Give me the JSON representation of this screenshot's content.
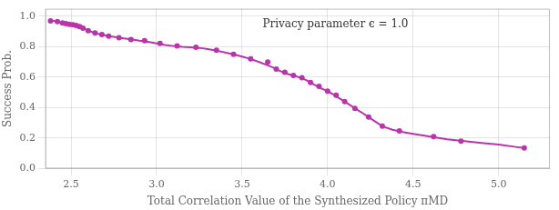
{
  "chart_data": {
    "type": "line",
    "xlabel": "Total Correlation Value of the Synthesized Policy πMD",
    "ylabel": "Success Prob.",
    "series": [
      {
        "type": "line",
        "color": "#bb33aa",
        "x": [
          2.38,
          2.39,
          2.4,
          2.41,
          2.42,
          2.43,
          2.44,
          2.445,
          2.45,
          2.455,
          2.46,
          2.465,
          2.47,
          2.475,
          2.48,
          2.485,
          2.49,
          2.495,
          2.5,
          2.505,
          2.51,
          2.515,
          2.52,
          2.525,
          2.53,
          2.535,
          2.54,
          2.545,
          2.55,
          2.56,
          2.57,
          2.58,
          2.59,
          2.6,
          2.62,
          2.64,
          2.66,
          2.68,
          2.7,
          2.72,
          2.75,
          2.78,
          2.82,
          2.86,
          2.9,
          2.95,
          3.0,
          3.05,
          3.1,
          3.15,
          3.2,
          3.25,
          3.3,
          3.35,
          3.4,
          3.45,
          3.5,
          3.55,
          3.6,
          3.65,
          3.68,
          3.7,
          3.72,
          3.74,
          3.76,
          3.78,
          3.8,
          3.82,
          3.84,
          3.86,
          3.88,
          3.9,
          3.92,
          3.94,
          3.96,
          3.98,
          4.0,
          4.02,
          4.04,
          4.06,
          4.08,
          4.1,
          4.13,
          4.16,
          4.2,
          4.24,
          4.28,
          4.32,
          4.38,
          4.44,
          4.5,
          4.6,
          4.7,
          4.8,
          4.9,
          5.0,
          5.1,
          5.15
        ],
        "values": [
          0.97,
          0.97,
          0.97,
          0.965,
          0.965,
          0.96,
          0.958,
          0.957,
          0.956,
          0.955,
          0.955,
          0.953,
          0.952,
          0.951,
          0.95,
          0.949,
          0.948,
          0.947,
          0.946,
          0.945,
          0.944,
          0.943,
          0.942,
          0.941,
          0.94,
          0.938,
          0.936,
          0.934,
          0.932,
          0.928,
          0.922,
          0.917,
          0.912,
          0.906,
          0.898,
          0.891,
          0.885,
          0.88,
          0.875,
          0.87,
          0.865,
          0.86,
          0.854,
          0.848,
          0.84,
          0.832,
          0.822,
          0.812,
          0.805,
          0.8,
          0.797,
          0.793,
          0.785,
          0.775,
          0.762,
          0.75,
          0.736,
          0.72,
          0.7,
          0.678,
          0.665,
          0.653,
          0.642,
          0.632,
          0.624,
          0.618,
          0.612,
          0.605,
          0.597,
          0.588,
          0.578,
          0.565,
          0.552,
          0.54,
          0.528,
          0.518,
          0.508,
          0.496,
          0.482,
          0.468,
          0.454,
          0.44,
          0.418,
          0.395,
          0.368,
          0.338,
          0.308,
          0.278,
          0.255,
          0.24,
          0.228,
          0.21,
          0.192,
          0.18,
          0.168,
          0.158,
          0.142,
          0.135
        ]
      },
      {
        "type": "scatter",
        "color": "#bb33aa",
        "x": [
          2.38,
          2.42,
          2.45,
          2.47,
          2.49,
          2.51,
          2.53,
          2.55,
          2.57,
          2.6,
          2.64,
          2.68,
          2.72,
          2.78,
          2.85,
          2.93,
          3.02,
          3.12,
          3.23,
          3.35,
          3.45,
          3.55,
          3.65,
          3.7,
          3.75,
          3.8,
          3.85,
          3.9,
          3.95,
          4.0,
          4.05,
          4.1,
          4.16,
          4.24,
          4.32,
          4.42,
          4.62,
          4.78,
          5.15
        ],
        "values": [
          0.97,
          0.965,
          0.956,
          0.952,
          0.948,
          0.944,
          0.94,
          0.932,
          0.922,
          0.906,
          0.891,
          0.88,
          0.87,
          0.86,
          0.848,
          0.84,
          0.822,
          0.805,
          0.797,
          0.778,
          0.75,
          0.72,
          0.7,
          0.653,
          0.632,
          0.612,
          0.597,
          0.565,
          0.54,
          0.508,
          0.482,
          0.44,
          0.395,
          0.338,
          0.278,
          0.247,
          0.21,
          0.18,
          0.135
        ]
      }
    ],
    "xlim": [
      2.35,
      5.3
    ],
    "ylim": [
      0.0,
      1.05
    ],
    "xticks": [
      2.5,
      {
        "value": 3.0,
        "label": "3.0"
      },
      3.5,
      {
        "value": 4.0,
        "label": "4.0"
      },
      4.5,
      {
        "value": 5.0,
        "label": "5.0"
      }
    ],
    "yticks": [
      {
        "value": 0.0,
        "label": "0.0"
      },
      0.2,
      0.4,
      0.6,
      0.8,
      {
        "value": 1.0,
        "label": "1.0"
      }
    ],
    "grid": true,
    "annotations": [
      {
        "text": "Privacy parameter ϵ = 1.0",
        "x": 3.62,
        "y": 0.98
      }
    ]
  }
}
